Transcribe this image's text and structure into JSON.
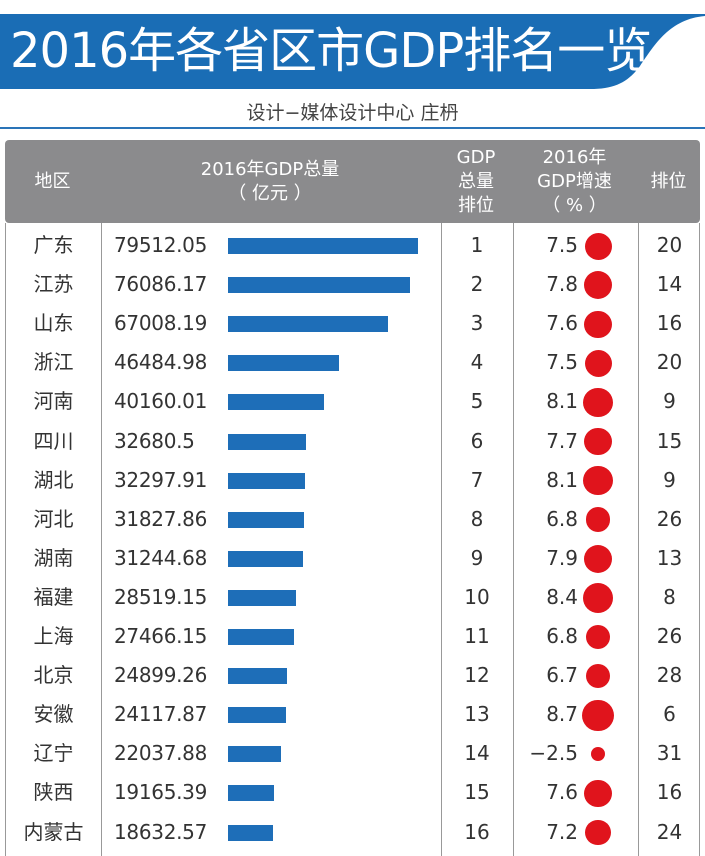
{
  "title": "2016年各省区市GDP排名一览",
  "subtitle": "设计−媒体设计中心  庄枬",
  "colors": {
    "band": "#1a6db5",
    "bar": "#1e6eb8",
    "dot": "#e0141c",
    "header": "#8b8b8d"
  },
  "chart_data": {
    "type": "table",
    "columns": [
      "地区",
      "2016年GDP总量（亿元）",
      "GDP总量排位",
      "2016年GDP增速（%）",
      "排位"
    ],
    "header": {
      "region": "地区",
      "gdp_l1": "2016年GDP总量",
      "gdp_l2": "（ 亿元 ）",
      "rank_l1": "GDP",
      "rank_l2": "总量",
      "rank_l3": "排位",
      "gr_l1": "2016年",
      "gr_l2": "GDP增速",
      "gr_l3": "（ % ）",
      "gr_rank": "排位"
    },
    "rows": [
      {
        "region": "广东",
        "gdp": "79512.05",
        "rank": "1",
        "growth": "7.5",
        "growth_rank": "20"
      },
      {
        "region": "江苏",
        "gdp": "76086.17",
        "rank": "2",
        "growth": "7.8",
        "growth_rank": "14"
      },
      {
        "region": "山东",
        "gdp": "67008.19",
        "rank": "3",
        "growth": "7.6",
        "growth_rank": "16"
      },
      {
        "region": "浙江",
        "gdp": "46484.98",
        "rank": "4",
        "growth": "7.5",
        "growth_rank": "20"
      },
      {
        "region": "河南",
        "gdp": "40160.01",
        "rank": "5",
        "growth": "8.1",
        "growth_rank": "9"
      },
      {
        "region": "四川",
        "gdp": "32680.5",
        "rank": "6",
        "growth": "7.7",
        "growth_rank": "15"
      },
      {
        "region": "湖北",
        "gdp": "32297.91",
        "rank": "7",
        "growth": "8.1",
        "growth_rank": "9"
      },
      {
        "region": "河北",
        "gdp": "31827.86",
        "rank": "8",
        "growth": "6.8",
        "growth_rank": "26"
      },
      {
        "region": "湖南",
        "gdp": "31244.68",
        "rank": "9",
        "growth": "7.9",
        "growth_rank": "13"
      },
      {
        "region": "福建",
        "gdp": "28519.15",
        "rank": "10",
        "growth": "8.4",
        "growth_rank": "8"
      },
      {
        "region": "上海",
        "gdp": "27466.15",
        "rank": "11",
        "growth": "6.8",
        "growth_rank": "26"
      },
      {
        "region": "北京",
        "gdp": "24899.26",
        "rank": "12",
        "growth": "6.7",
        "growth_rank": "28"
      },
      {
        "region": "安徽",
        "gdp": "24117.87",
        "rank": "13",
        "growth": "8.7",
        "growth_rank": "6"
      },
      {
        "region": "辽宁",
        "gdp": "22037.88",
        "rank": "14",
        "growth": "−2.5",
        "growth_rank": "31"
      },
      {
        "region": "陕西",
        "gdp": "19165.39",
        "rank": "15",
        "growth": "7.6",
        "growth_rank": "16"
      },
      {
        "region": "内蒙古",
        "gdp": "18632.57",
        "rank": "16",
        "growth": "7.2",
        "growth_rank": "24"
      }
    ]
  }
}
